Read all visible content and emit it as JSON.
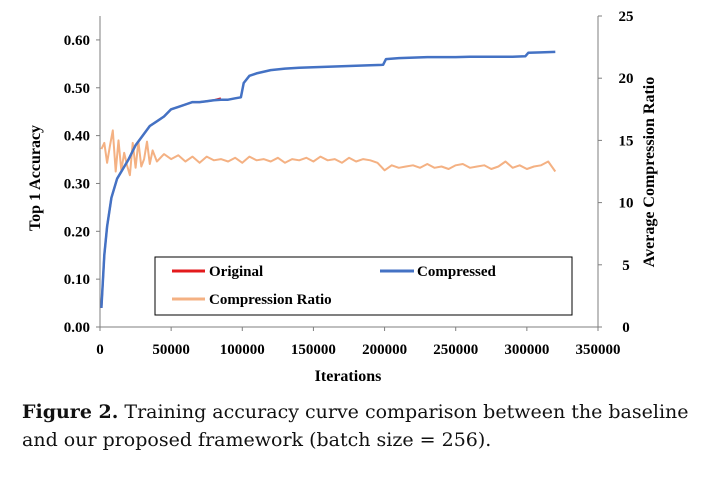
{
  "chart_data": {
    "type": "line",
    "xlabel": "Iterations",
    "ylabel": "Top 1 Accuracy",
    "y2label": "Average Compression Ratio",
    "xlim": [
      0,
      350000
    ],
    "ylim": [
      0,
      0.65
    ],
    "y2lim": [
      0,
      25
    ],
    "x_ticks": [
      "0",
      "50000",
      "100000",
      "150000",
      "200000",
      "250000",
      "300000",
      "350000"
    ],
    "y_ticks": [
      "0.00",
      "0.10",
      "0.20",
      "0.30",
      "0.40",
      "0.50",
      "0.60"
    ],
    "y2_ticks": [
      "0",
      "5",
      "10",
      "15",
      "20",
      "25"
    ],
    "grid": false,
    "legend_position": "bottom-center",
    "series": [
      {
        "name": "Original",
        "axis": "left",
        "color": "#e31a1c",
        "x": [
          1000,
          3000,
          5000,
          8000,
          12000,
          16000,
          20000,
          25000,
          30000,
          35000,
          40000,
          45000,
          50000,
          55000,
          60000,
          65000,
          70000,
          75000,
          80000,
          85000
        ],
        "y": [
          0.04,
          0.15,
          0.21,
          0.27,
          0.31,
          0.33,
          0.35,
          0.38,
          0.4,
          0.42,
          0.43,
          0.44,
          0.455,
          0.46,
          0.465,
          0.47,
          0.47,
          0.472,
          0.474,
          0.478
        ]
      },
      {
        "name": "Compressed",
        "axis": "left",
        "color": "#4472c4",
        "x": [
          1000,
          3000,
          5000,
          8000,
          12000,
          16000,
          20000,
          25000,
          30000,
          35000,
          40000,
          45000,
          50000,
          55000,
          60000,
          65000,
          70000,
          75000,
          80000,
          85000,
          90000,
          95000,
          99000,
          101000,
          105000,
          110000,
          120000,
          130000,
          140000,
          150000,
          160000,
          170000,
          180000,
          190000,
          199000,
          201000,
          210000,
          220000,
          230000,
          240000,
          250000,
          260000,
          270000,
          280000,
          290000,
          299000,
          301000,
          310000,
          320000
        ],
        "y": [
          0.04,
          0.15,
          0.21,
          0.27,
          0.31,
          0.33,
          0.35,
          0.38,
          0.4,
          0.42,
          0.43,
          0.44,
          0.455,
          0.46,
          0.465,
          0.47,
          0.47,
          0.472,
          0.474,
          0.475,
          0.475,
          0.478,
          0.48,
          0.51,
          0.525,
          0.53,
          0.537,
          0.54,
          0.542,
          0.543,
          0.544,
          0.545,
          0.546,
          0.547,
          0.548,
          0.56,
          0.562,
          0.563,
          0.564,
          0.564,
          0.564,
          0.565,
          0.565,
          0.565,
          0.565,
          0.566,
          0.573,
          0.574,
          0.575
        ]
      },
      {
        "name": "Compression Ratio",
        "axis": "right",
        "color": "#f4b183",
        "x": [
          1000,
          3000,
          5000,
          7000,
          9000,
          11000,
          13000,
          15000,
          17000,
          19000,
          21000,
          23000,
          25000,
          27000,
          29000,
          31000,
          33000,
          35000,
          37000,
          40000,
          45000,
          50000,
          55000,
          60000,
          65000,
          70000,
          75000,
          80000,
          85000,
          90000,
          95000,
          100000,
          105000,
          110000,
          115000,
          120000,
          125000,
          130000,
          135000,
          140000,
          145000,
          150000,
          155000,
          160000,
          165000,
          170000,
          175000,
          180000,
          185000,
          190000,
          195000,
          200000,
          205000,
          210000,
          215000,
          220000,
          225000,
          230000,
          235000,
          240000,
          245000,
          250000,
          255000,
          260000,
          265000,
          270000,
          275000,
          280000,
          285000,
          290000,
          295000,
          300000,
          305000,
          310000,
          315000,
          320000
        ],
        "y": [
          14.3,
          14.8,
          13.2,
          14.6,
          15.8,
          12.5,
          15.0,
          12.6,
          14.0,
          13.0,
          12.2,
          14.8,
          12.8,
          14.9,
          12.9,
          13.5,
          14.9,
          13.1,
          14.2,
          13.3,
          13.9,
          13.5,
          13.8,
          13.3,
          13.7,
          13.2,
          13.7,
          13.4,
          13.5,
          13.3,
          13.6,
          13.2,
          13.7,
          13.4,
          13.5,
          13.3,
          13.6,
          13.2,
          13.5,
          13.4,
          13.6,
          13.3,
          13.7,
          13.4,
          13.5,
          13.2,
          13.6,
          13.3,
          13.5,
          13.4,
          13.2,
          12.6,
          13.0,
          12.8,
          12.9,
          13.0,
          12.8,
          13.1,
          12.8,
          12.9,
          12.7,
          13.0,
          13.1,
          12.8,
          12.9,
          13.0,
          12.7,
          12.9,
          13.3,
          12.8,
          13.0,
          12.7,
          12.9,
          13.0,
          13.3,
          12.5
        ]
      }
    ]
  },
  "caption": {
    "label": "Figure 2.",
    "text": " Training accuracy curve comparison between the baseline and our proposed framework (batch size = 256)."
  }
}
